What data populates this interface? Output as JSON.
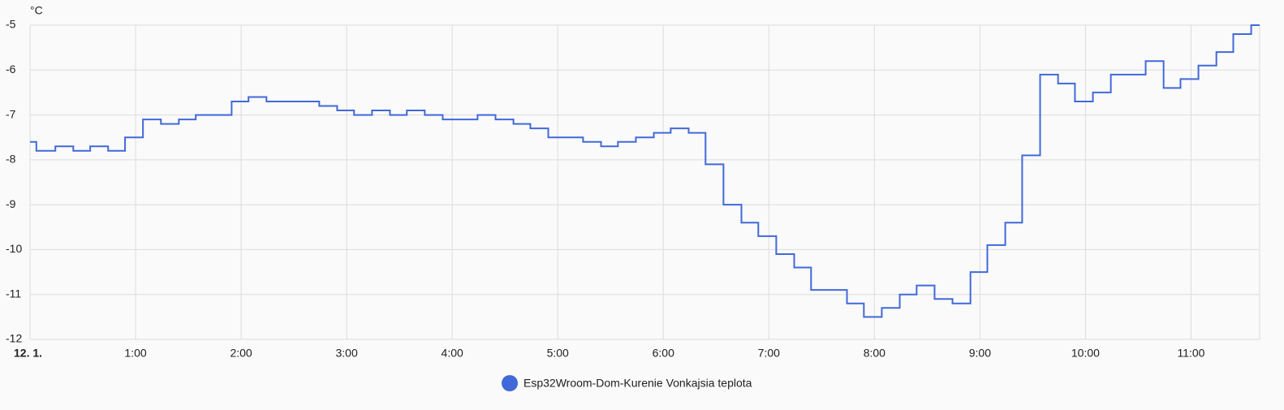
{
  "chart_data": {
    "type": "line",
    "step": true,
    "grid": true,
    "ylabel": "°C",
    "x": [
      0,
      0.06,
      0.24,
      0.41,
      0.57,
      0.74,
      0.9,
      1.07,
      1.24,
      1.41,
      1.57,
      1.91,
      2.07,
      2.24,
      2.74,
      2.91,
      3.07,
      3.24,
      3.41,
      3.57,
      3.74,
      3.91,
      4.24,
      4.41,
      4.58,
      4.74,
      4.91,
      5.24,
      5.41,
      5.57,
      5.74,
      5.91,
      6.07,
      6.24,
      6.4,
      6.57,
      6.74,
      6.9,
      7.07,
      7.24,
      7.4,
      7.74,
      7.9,
      8.07,
      8.24,
      8.4,
      8.57,
      8.74,
      8.91,
      9.07,
      9.24,
      9.4,
      9.57,
      9.74,
      9.9,
      10.07,
      10.24,
      10.57,
      10.74,
      10.9,
      11.07,
      11.24,
      11.4,
      11.57
    ],
    "series": [
      {
        "name": "Esp32Wroom-Dom-Kurenie Vonkajsia teplota",
        "color": "#4169d9",
        "values": [
          -7.6,
          -7.8,
          -7.7,
          -7.8,
          -7.7,
          -7.8,
          -7.5,
          -7.1,
          -7.2,
          -7.1,
          -7.0,
          -6.7,
          -6.6,
          -6.7,
          -6.8,
          -6.9,
          -7.0,
          -6.9,
          -7.0,
          -6.9,
          -7.0,
          -7.1,
          -7.0,
          -7.1,
          -7.2,
          -7.3,
          -7.5,
          -7.6,
          -7.7,
          -7.6,
          -7.5,
          -7.4,
          -7.3,
          -7.4,
          -8.1,
          -9.0,
          -9.4,
          -9.7,
          -10.1,
          -10.4,
          -10.9,
          -11.2,
          -11.5,
          -11.3,
          -11.0,
          -10.8,
          -11.1,
          -11.2,
          -10.5,
          -9.9,
          -9.4,
          -7.9,
          -6.1,
          -6.3,
          -6.7,
          -6.5,
          -6.1,
          -5.8,
          -6.4,
          -6.2,
          -5.9,
          -5.6,
          -5.2,
          -5.0
        ]
      }
    ],
    "xlim": [
      0,
      11.65
    ],
    "xticks": [
      {
        "value": 0,
        "label": "12. 1."
      },
      {
        "value": 1,
        "label": "1:00"
      },
      {
        "value": 2,
        "label": "2:00"
      },
      {
        "value": 3,
        "label": "3:00"
      },
      {
        "value": 4,
        "label": "4:00"
      },
      {
        "value": 5,
        "label": "5:00"
      },
      {
        "value": 6,
        "label": "6:00"
      },
      {
        "value": 7,
        "label": "7:00"
      },
      {
        "value": 8,
        "label": "8:00"
      },
      {
        "value": 9,
        "label": "9:00"
      },
      {
        "value": 10,
        "label": "10:00"
      },
      {
        "value": 11,
        "label": "11:00"
      }
    ],
    "ylim": [
      -12,
      -5
    ],
    "yticks": [
      -5,
      -6,
      -7,
      -8,
      -9,
      -10,
      -11,
      -12
    ]
  }
}
